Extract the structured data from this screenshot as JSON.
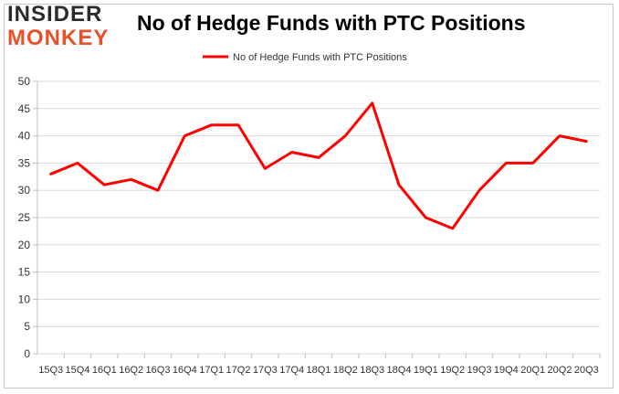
{
  "logo": {
    "line1": "INSIDER",
    "line2": "MONKEY"
  },
  "chart_data": {
    "type": "line",
    "title": "No of Hedge Funds with PTC Positions",
    "xlabel": "",
    "ylabel": "",
    "ylim": [
      0,
      50
    ],
    "yticks": [
      0,
      5,
      10,
      15,
      20,
      25,
      30,
      35,
      40,
      45,
      50
    ],
    "grid": true,
    "legend": "top-center",
    "categories": [
      "2015Q3",
      "2015Q4",
      "2016Q1",
      "2016Q2",
      "2016Q3",
      "2016Q4",
      "2017Q1",
      "2017Q2",
      "2017Q3",
      "2017Q4",
      "2018Q1",
      "2018Q2",
      "2018Q3",
      "2018Q4",
      "2019Q1",
      "2019Q2",
      "2019Q3",
      "2019Q4",
      "2020Q1",
      "2020Q2",
      "2020Q3"
    ],
    "tick_labels": [
      "15Q3",
      "15Q4",
      "16Q1",
      "16Q2",
      "16Q3",
      "16Q4",
      "17Q1",
      "17Q2",
      "17Q3",
      "17Q4",
      "18Q1",
      "18Q2",
      "18Q3",
      "18Q4",
      "19Q1",
      "19Q2",
      "19Q3",
      "19Q4",
      "20Q1",
      "20Q2",
      "20Q3"
    ],
    "series": [
      {
        "name": "No of Hedge Funds with PTC Positions",
        "color": "#ff0000",
        "values": [
          33,
          35,
          31,
          32,
          30,
          40,
          42,
          42,
          34,
          37,
          36,
          40,
          46,
          31,
          25,
          23,
          30,
          35,
          35,
          40,
          39
        ]
      }
    ]
  }
}
